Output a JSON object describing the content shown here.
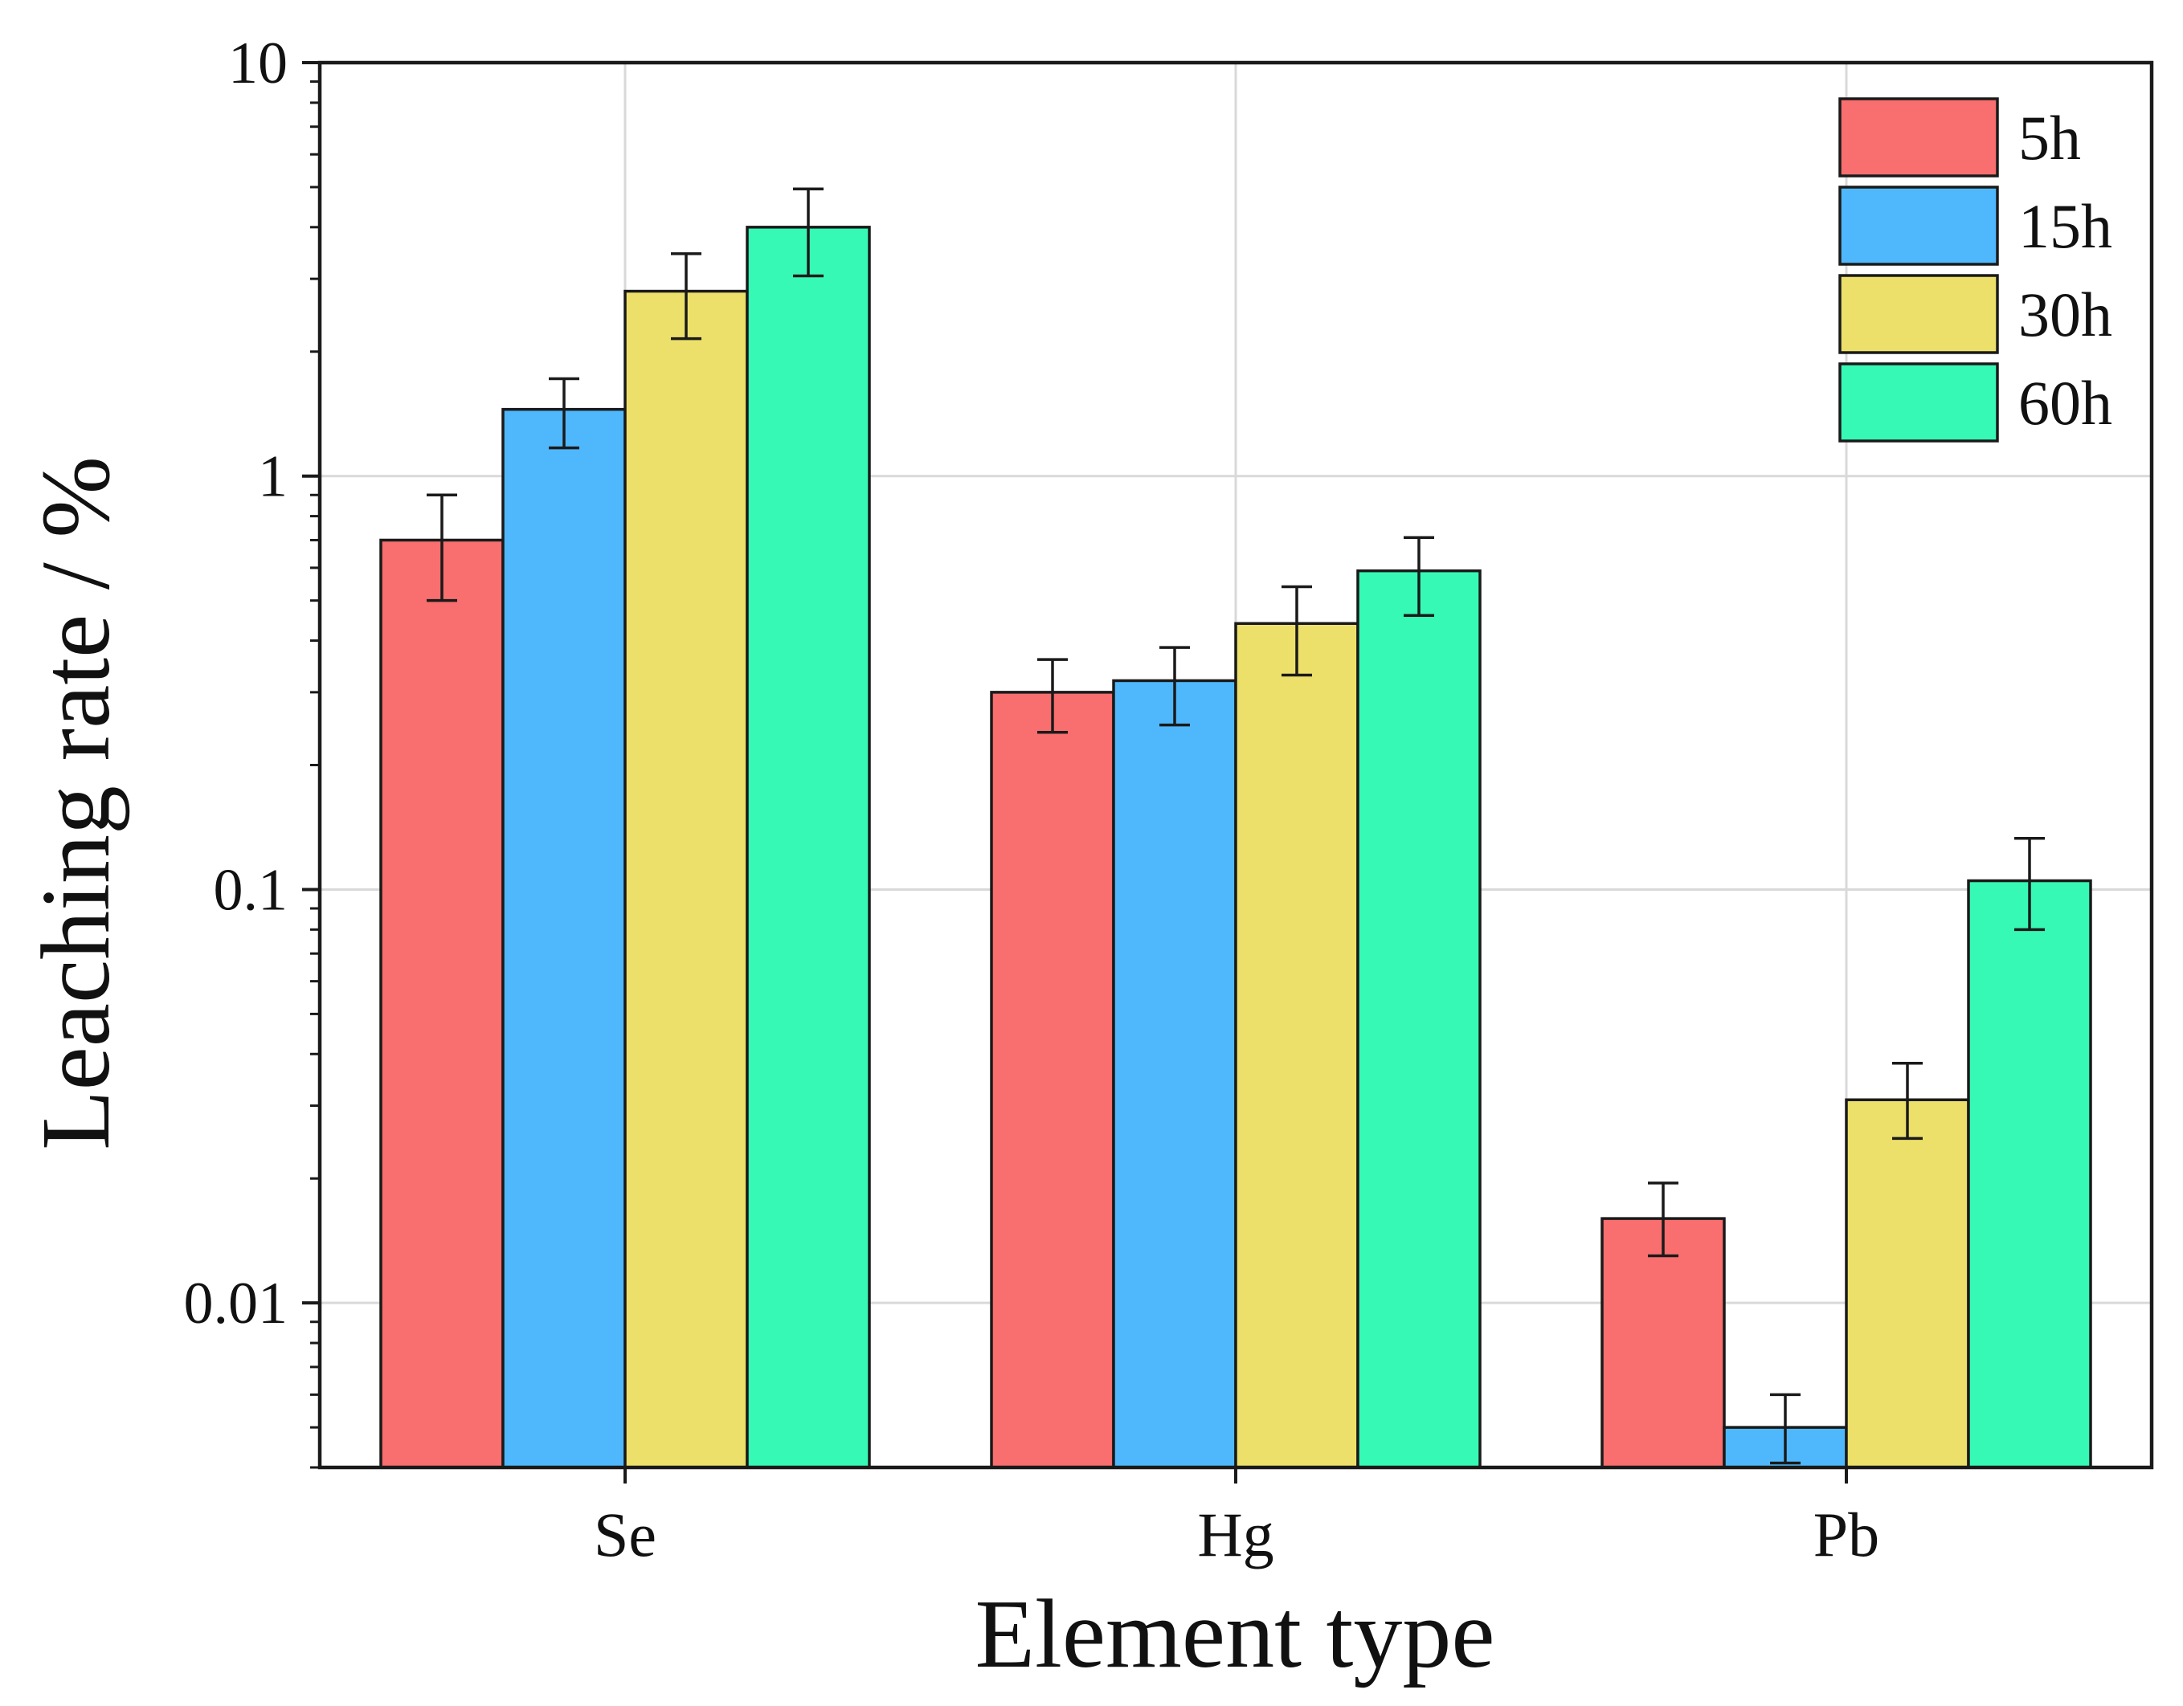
{
  "chart_data": {
    "type": "bar",
    "title": "",
    "xlabel": "Element type",
    "ylabel": "Leaching rate / %",
    "yscale": "log",
    "ylim": [
      0.004,
      10
    ],
    "yticks": [
      0.01,
      0.1,
      1,
      10
    ],
    "ytick_labels": [
      "0.01",
      "0.1",
      "1",
      "10"
    ],
    "grid": true,
    "legend_position": "top-right",
    "categories": [
      "Se",
      "Hg",
      "Pb"
    ],
    "series": [
      {
        "name": "5h",
        "color": "#f96e6e",
        "values": [
          0.7,
          0.3,
          0.016
        ],
        "err_low": [
          0.5,
          0.24,
          0.013
        ],
        "err_high": [
          0.9,
          0.36,
          0.0195
        ]
      },
      {
        "name": "15h",
        "color": "#4fb8fc",
        "values": [
          1.45,
          0.32,
          0.005
        ],
        "err_low": [
          1.17,
          0.25,
          0.0041
        ],
        "err_high": [
          1.72,
          0.385,
          0.006
        ]
      },
      {
        "name": "30h",
        "color": "#ece06a",
        "values": [
          2.8,
          0.44,
          0.031
        ],
        "err_low": [
          2.15,
          0.33,
          0.025
        ],
        "err_high": [
          3.45,
          0.54,
          0.038
        ]
      },
      {
        "name": "60h",
        "color": "#36f9b6",
        "values": [
          4.0,
          0.59,
          0.105
        ],
        "err_low": [
          3.05,
          0.46,
          0.08
        ],
        "err_high": [
          4.95,
          0.71,
          0.133
        ]
      }
    ]
  }
}
